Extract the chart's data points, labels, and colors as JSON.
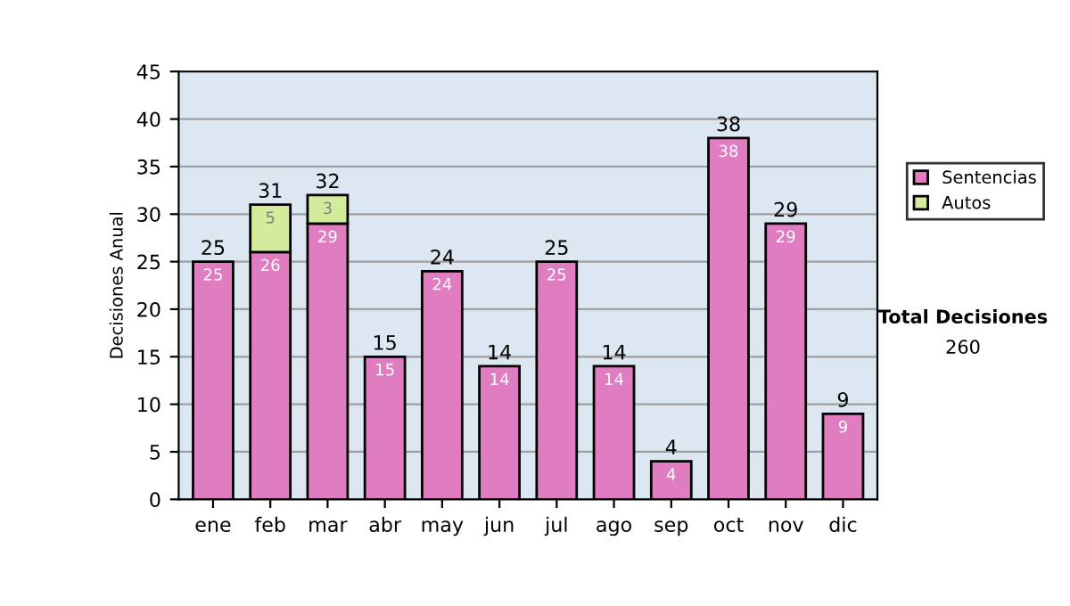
{
  "chart_data": {
    "type": "bar",
    "stacked": true,
    "ylabel": "Decisiones Anual",
    "categories": [
      "ene",
      "feb",
      "mar",
      "abr",
      "may",
      "jun",
      "jul",
      "ago",
      "sep",
      "oct",
      "nov",
      "dic"
    ],
    "series": [
      {
        "name": "Sentencias",
        "color": "#e07cc0",
        "values": [
          25,
          26,
          29,
          15,
          24,
          14,
          25,
          14,
          4,
          38,
          29,
          9
        ],
        "value_labels": [
          "25",
          "26",
          "29",
          "15",
          "24",
          "14",
          "25",
          "14",
          "4",
          "38",
          "29",
          "9"
        ]
      },
      {
        "name": "Autos",
        "color": "#d4ea9c",
        "values": [
          null,
          5,
          3,
          null,
          null,
          null,
          null,
          null,
          null,
          null,
          null,
          null
        ],
        "value_labels": [
          null,
          "5",
          "3",
          null,
          null,
          null,
          null,
          null,
          null,
          null,
          null,
          null
        ]
      }
    ],
    "totals": [
      "25",
      "31",
      "32",
      "15",
      "24",
      "14",
      "25",
      "14",
      "4",
      "38",
      "29",
      "9"
    ],
    "ylim": [
      0,
      45
    ],
    "yticks": [
      0,
      5,
      10,
      15,
      20,
      25,
      30,
      35,
      40,
      45
    ],
    "grid": "y",
    "legend": "right",
    "annotations": [
      "Total Decisiones",
      "260"
    ]
  }
}
